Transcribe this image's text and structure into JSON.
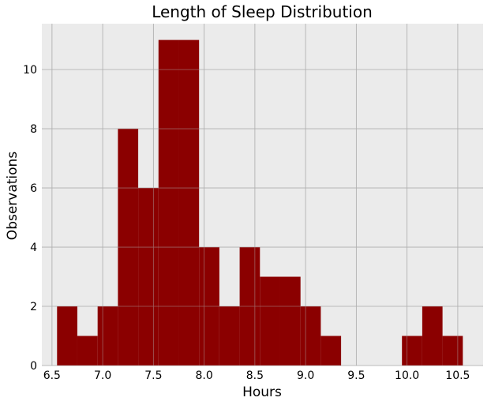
{
  "chart_data": {
    "type": "bar",
    "title": "Length of Sleep Distribution",
    "xlabel": "Hours",
    "ylabel": "Observations",
    "xlim": [
      6.4,
      10.75
    ],
    "ylim": [
      0,
      11.55
    ],
    "xticks": [
      6.5,
      7.0,
      7.5,
      8.0,
      8.5,
      9.0,
      9.5,
      10.0,
      10.5
    ],
    "xtick_labels": [
      "6.5",
      "7.0",
      "7.5",
      "8.0",
      "8.5",
      "9.0",
      "9.5",
      "10.0",
      "10.5"
    ],
    "yticks": [
      0,
      2,
      4,
      6,
      8,
      10
    ],
    "ytick_labels": [
      "0",
      "2",
      "4",
      "6",
      "8",
      "10"
    ],
    "grid": true,
    "colors": {
      "bar": "#8b0000",
      "plot_background": "#ebebeb",
      "grid": "#b0b0b0"
    },
    "bins": [
      {
        "start": 6.55,
        "end": 6.75,
        "count": 2
      },
      {
        "start": 6.75,
        "end": 6.95,
        "count": 1
      },
      {
        "start": 6.95,
        "end": 7.15,
        "count": 2
      },
      {
        "start": 7.15,
        "end": 7.35,
        "count": 8
      },
      {
        "start": 7.35,
        "end": 7.55,
        "count": 6
      },
      {
        "start": 7.55,
        "end": 7.75,
        "count": 11
      },
      {
        "start": 7.75,
        "end": 7.95,
        "count": 11
      },
      {
        "start": 7.95,
        "end": 8.15,
        "count": 4
      },
      {
        "start": 8.15,
        "end": 8.35,
        "count": 2
      },
      {
        "start": 8.35,
        "end": 8.55,
        "count": 4
      },
      {
        "start": 8.55,
        "end": 8.75,
        "count": 3
      },
      {
        "start": 8.75,
        "end": 8.95,
        "count": 3
      },
      {
        "start": 8.95,
        "end": 9.15,
        "count": 2
      },
      {
        "start": 9.15,
        "end": 9.35,
        "count": 1
      },
      {
        "start": 9.35,
        "end": 9.55,
        "count": 0
      },
      {
        "start": 9.55,
        "end": 9.75,
        "count": 0
      },
      {
        "start": 9.75,
        "end": 9.95,
        "count": 0
      },
      {
        "start": 9.95,
        "end": 10.15,
        "count": 1
      },
      {
        "start": 10.15,
        "end": 10.35,
        "count": 2
      },
      {
        "start": 10.35,
        "end": 10.55,
        "count": 1
      }
    ]
  }
}
